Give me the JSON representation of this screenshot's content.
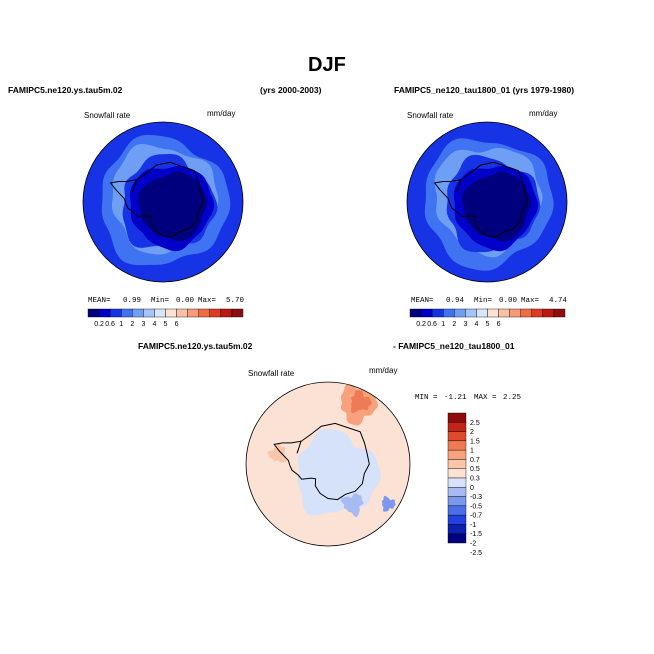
{
  "title": "DJF",
  "colors": {
    "cool": [
      "#00007f",
      "#0000c8",
      "#1733e6",
      "#3f73f2",
      "#6e9ff5",
      "#a4c4fa",
      "#d7e6fb"
    ],
    "warm": [
      "#fde2d3",
      "#fcc1a3",
      "#fb9a78",
      "#f36a45",
      "#de3b22",
      "#bd1813",
      "#8e0f0f"
    ],
    "diff": [
      "#00007f",
      "#0c1fb0",
      "#2440e0",
      "#4a6ee8",
      "#7b97ee",
      "#a9baf3",
      "#d6e2fa",
      "#fbe2d4",
      "#f9c6a9",
      "#f7a27c",
      "#f07a55",
      "#df4a2c",
      "#c42317",
      "#8e0b0b"
    ],
    "coast": "#000000"
  },
  "chart_data": [
    {
      "type": "heatmap",
      "panel": "left",
      "case_label": "FAMIPC5.ne120.ys.tau5m.02",
      "years_label": "(yrs 2000-2003)",
      "variable": "Snowfall rate",
      "units": "mm/day",
      "stats": {
        "mean_label": "MEAN=",
        "mean": "0.99",
        "min_label": "Min=",
        "min": "0.00",
        "max_label": "Max=",
        "max": "5.70"
      },
      "colorbar_ticks": [
        "0.2",
        "0.6",
        "1",
        "2",
        "3",
        "4",
        "5",
        "6"
      ]
    },
    {
      "type": "heatmap",
      "panel": "right",
      "case_label": "FAMIPC5_ne120_tau1800_01 (yrs 1979-1980)",
      "variable": "Snowfall rate",
      "units": "mm/day",
      "stats": {
        "mean_label": "MEAN=",
        "mean": "0.94",
        "min_label": "Min=",
        "min": "0.00",
        "max_label": "Max=",
        "max": "4.74"
      },
      "colorbar_ticks": [
        "0.2",
        "0.6",
        "1",
        "2",
        "3",
        "4",
        "5",
        "6"
      ]
    },
    {
      "type": "heatmap",
      "panel": "difference",
      "case_a": "FAMIPC5.ne120.ys.tau5m.02",
      "case_b": "- FAMIPC5_ne120_tau1800_01",
      "variable": "Snowfall rate",
      "units": "mm/day",
      "stats": {
        "min_label": "MIN =",
        "min": "-1.21",
        "max_label": "MAX =",
        "max": "2.25"
      },
      "colorbar_ticks": [
        "2.5",
        "2",
        "1.5",
        "1",
        "0.7",
        "0.5",
        "0.3",
        "0",
        "-0.3",
        "-0.5",
        "-0.7",
        "-1",
        "-1.5",
        "-2",
        "-2.5"
      ]
    }
  ]
}
